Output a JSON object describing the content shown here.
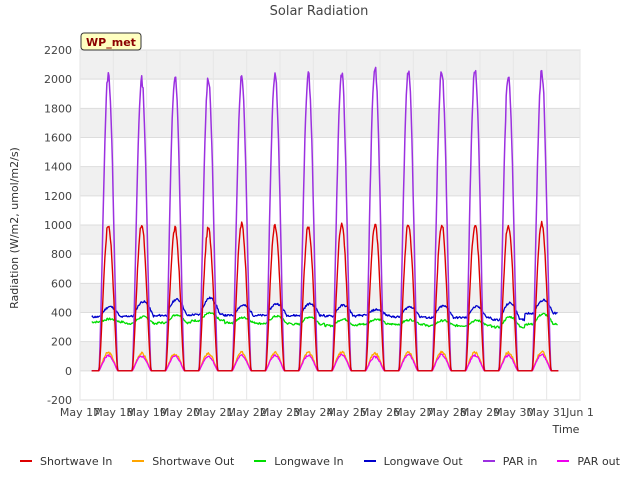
{
  "chart_data": {
    "type": "line",
    "title": "Solar Radiation",
    "xlabel": "Time",
    "ylabel": "Radiation (W/m2, umol/m2/s)",
    "annotation": "WP_met",
    "ylim": [
      -200,
      2200
    ],
    "xlim": [
      0,
      15
    ],
    "yticks": [
      -200,
      0,
      200,
      400,
      600,
      800,
      1000,
      1200,
      1400,
      1600,
      1800,
      2000,
      2200
    ],
    "xtick_labels": [
      "May 17",
      "May 18",
      "May 19",
      "May 20",
      "May 21",
      "May 22",
      "May 23",
      "May 24",
      "May 25",
      "May 26",
      "May 27",
      "May 28",
      "May 29",
      "May 30",
      "May 31",
      "Jun 1"
    ],
    "days_start": 0.35,
    "day_peaks": {
      "Shortwave In": [
        1000,
        1000,
        975,
        975,
        1005,
        990,
        990,
        1015,
        1000,
        1005,
        1005,
        1000,
        1005,
        1015
      ],
      "PAR in": [
        2030,
        1995,
        2010,
        2010,
        2020,
        2040,
        2030,
        2035,
        2075,
        2060,
        2060,
        2060,
        2030,
        2050
      ],
      "Shortwave Out": [
        125,
        120,
        115,
        120,
        125,
        125,
        125,
        130,
        120,
        125,
        130,
        125,
        125,
        130
      ],
      "PAR out": [
        105,
        100,
        100,
        100,
        105,
        105,
        105,
        110,
        95,
        110,
        110,
        105,
        105,
        110
      ],
      "Longwave In base": [
        335,
        325,
        330,
        345,
        330,
        325,
        320,
        310,
        320,
        320,
        310,
        310,
        300,
        320
      ],
      "Longwave In peak": [
        355,
        370,
        385,
        395,
        365,
        375,
        370,
        355,
        355,
        350,
        345,
        345,
        370,
        390
      ],
      "Longwave Out base": [
        370,
        375,
        380,
        385,
        380,
        380,
        380,
        375,
        380,
        370,
        365,
        365,
        350,
        395
      ],
      "Longwave Out peak": [
        440,
        475,
        490,
        500,
        450,
        460,
        460,
        450,
        420,
        440,
        445,
        440,
        465,
        485
      ]
    },
    "legend": [
      {
        "name": "Shortwave In",
        "color": "#dd0000"
      },
      {
        "name": "Shortwave Out",
        "color": "#ffa500"
      },
      {
        "name": "Longwave In",
        "color": "#00dd00"
      },
      {
        "name": "Longwave Out",
        "color": "#0000cc"
      },
      {
        "name": "PAR in",
        "color": "#9b30e0"
      },
      {
        "name": "PAR out",
        "color": "#ee00ee"
      }
    ],
    "grid": true,
    "legend_placement": "bottom"
  }
}
